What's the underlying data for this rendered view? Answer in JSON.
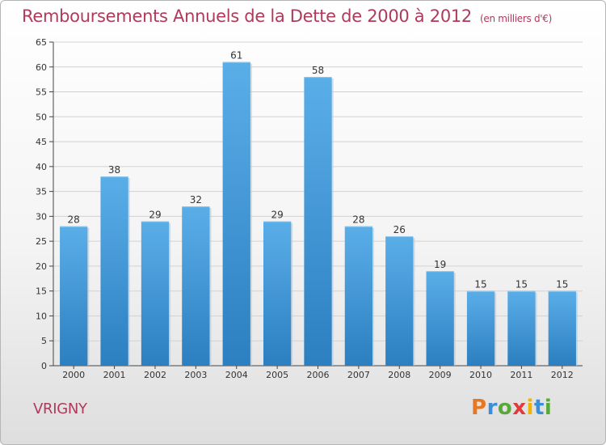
{
  "header": {
    "title": "Remboursements Annuels de la Dette de 2000 à 2012",
    "unit": "(en milliers d'€)"
  },
  "footer": {
    "place": "VRIGNY",
    "logo": [
      "P",
      "r",
      "o",
      "x",
      "i",
      "t",
      "i"
    ]
  },
  "colors": {
    "title": "#b03a5b",
    "bar_light": "#5aaee8",
    "bar_dark": "#2c7fc0",
    "logo": [
      "#e87722",
      "#3b8fd6",
      "#58a83a",
      "#e23b3b",
      "#f0b400",
      "#3b8fd6",
      "#58a83a"
    ]
  },
  "chart_data": {
    "type": "bar",
    "categories": [
      "2000",
      "2001",
      "2002",
      "2003",
      "2004",
      "2005",
      "2006",
      "2007",
      "2008",
      "2009",
      "2010",
      "2011",
      "2012"
    ],
    "values": [
      28,
      38,
      29,
      32,
      61,
      29,
      58,
      28,
      26,
      19,
      15,
      15,
      15
    ],
    "data_labels": [
      "28",
      "38",
      "29",
      "32",
      "61",
      "29",
      "58",
      "28",
      "26",
      "19",
      "15",
      "15",
      "15"
    ],
    "ylim": [
      0,
      65
    ],
    "yticks": [
      0,
      5,
      10,
      15,
      20,
      25,
      30,
      35,
      40,
      45,
      50,
      55,
      60,
      65
    ],
    "grid": true
  }
}
